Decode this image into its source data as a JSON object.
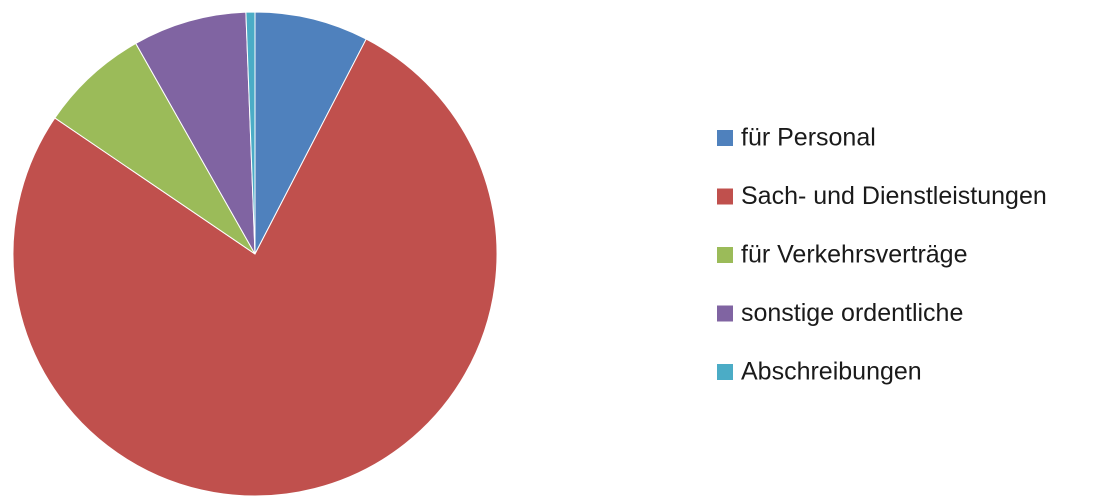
{
  "chart_data": {
    "type": "pie",
    "categories": [
      "für Personal",
      "Sach- und Dienstleistungen",
      "für Verkehrsverträge",
      "sonstige ordentliche",
      "Abschreibungen"
    ],
    "values": [
      7.6,
      76.9,
      7.3,
      7.6,
      0.6
    ],
    "colors": [
      "#4f81bd",
      "#c0504d",
      "#9bbb59",
      "#8064a2",
      "#4bacc6"
    ],
    "legend": "right"
  }
}
